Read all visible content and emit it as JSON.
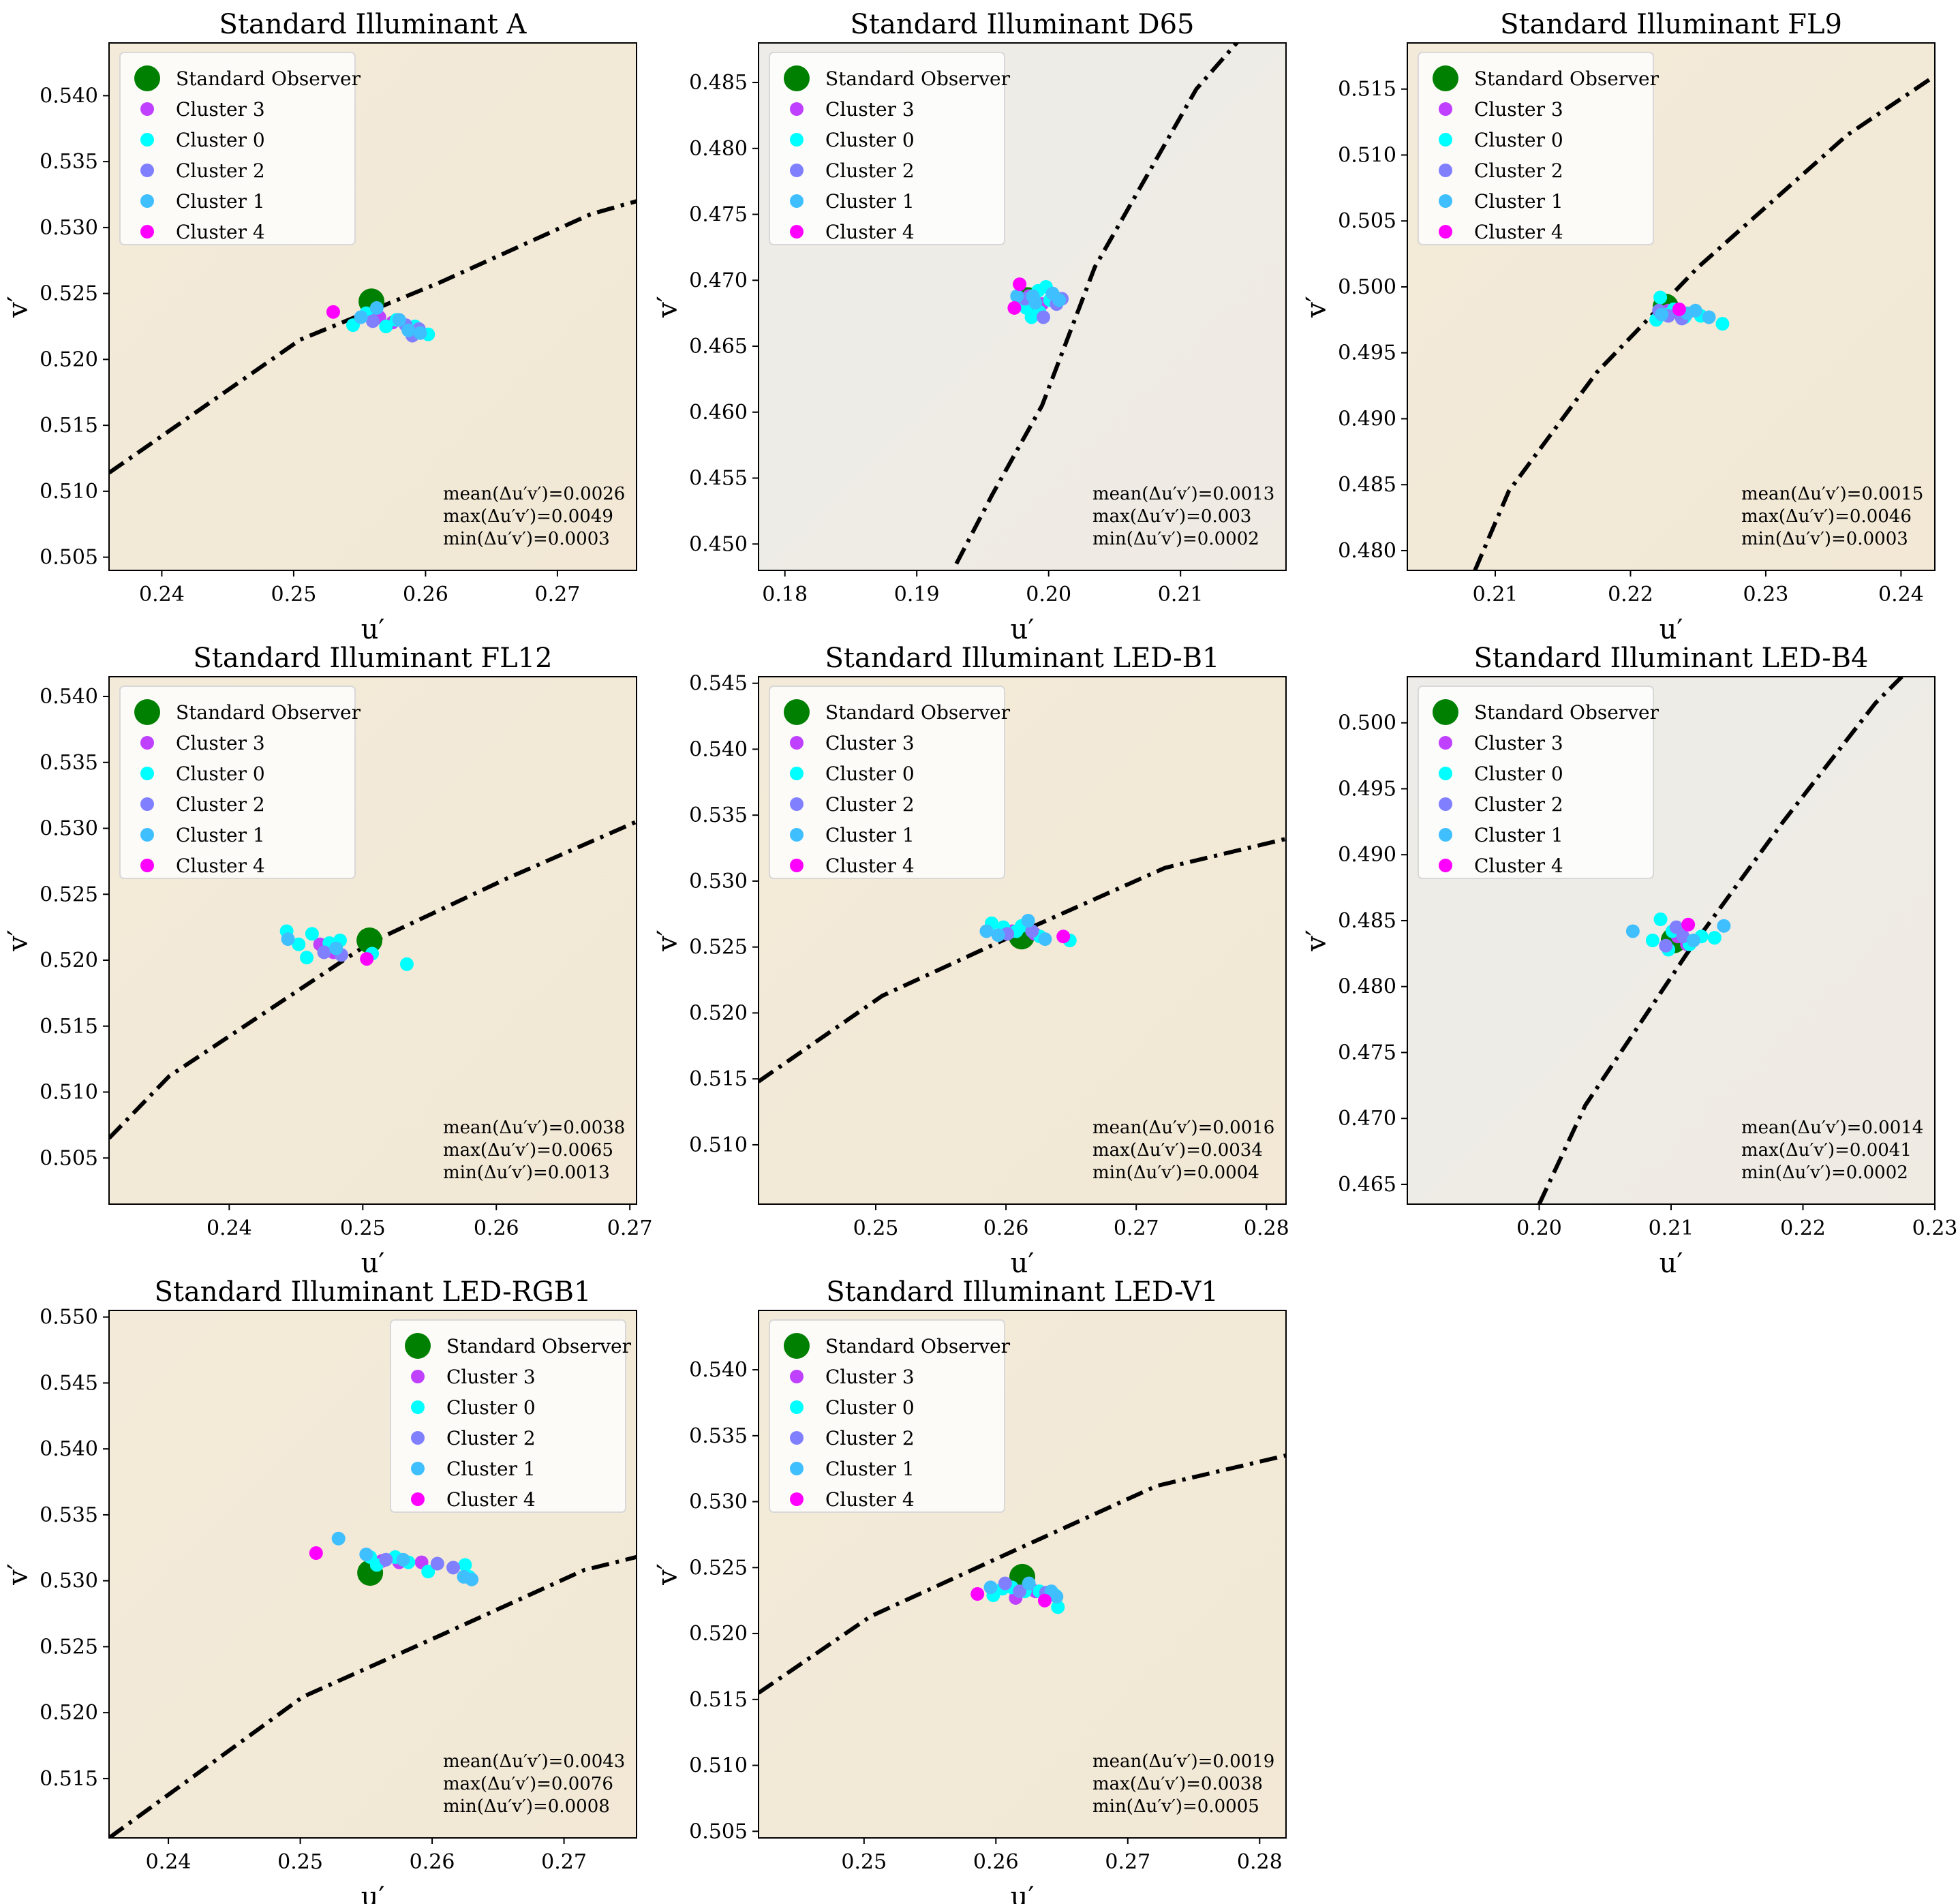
{
  "colors": {
    "standard_observer": "#008000",
    "cluster_3": "#bf40ff",
    "cluster_0": "#00ffff",
    "cluster_2": "#8080ff",
    "cluster_1": "#40bfff",
    "cluster_4": "#ff00ff",
    "locus_line": "#000000",
    "bg_warm": "#f3ead9",
    "bg_cool": "#eeece8"
  },
  "legend_labels": [
    "Standard Observer",
    "Cluster 3",
    "Cluster 0",
    "Cluster 2",
    "Cluster 1",
    "Cluster 4"
  ],
  "chart_data": [
    {
      "type": "scatter",
      "title": "Standard Illuminant A",
      "xlabel": "u′",
      "ylabel": "v′",
      "xlim": [
        0.236,
        0.276
      ],
      "ylim": [
        0.504,
        0.544
      ],
      "xticks": [
        0.24,
        0.25,
        0.26,
        0.27
      ],
      "yticks": [
        0.505,
        0.51,
        0.515,
        0.52,
        0.525,
        0.53,
        0.535,
        0.54
      ],
      "decimals": 3,
      "legend": "top-left",
      "background": "warm",
      "observer": [
        0.2559,
        0.5244
      ],
      "locus": [
        [
          0.236,
          0.5114
        ],
        [
          0.2505,
          0.5215
        ],
        [
          0.261,
          0.5258
        ],
        [
          0.2725,
          0.531
        ],
        [
          0.276,
          0.532
        ]
      ],
      "clusters": {
        "c3": [
          [
            0.2565,
            0.5232
          ],
          [
            0.2575,
            0.5228
          ],
          [
            0.259,
            0.5222
          ]
        ],
        "c0": [
          [
            0.2545,
            0.5226
          ],
          [
            0.2555,
            0.5235
          ],
          [
            0.257,
            0.5225
          ],
          [
            0.2578,
            0.523
          ],
          [
            0.2592,
            0.5225
          ],
          [
            0.2602,
            0.5219
          ]
        ],
        "c2": [
          [
            0.256,
            0.5229
          ],
          [
            0.2585,
            0.5226
          ],
          [
            0.2595,
            0.5223
          ],
          [
            0.259,
            0.5218
          ]
        ],
        "c1": [
          [
            0.2551,
            0.5232
          ],
          [
            0.2563,
            0.5239
          ],
          [
            0.258,
            0.523
          ],
          [
            0.2587,
            0.5222
          ],
          [
            0.2596,
            0.522
          ]
        ],
        "c4": [
          [
            0.253,
            0.5236
          ]
        ]
      },
      "stats": {
        "mean": "mean(Δu′v′)=0.0026",
        "max": "max(Δu′v′)=0.0049",
        "min": "min(Δu′v′)=0.0003"
      }
    },
    {
      "type": "scatter",
      "title": "Standard Illuminant D65",
      "xlabel": "u′",
      "ylabel": "v′",
      "xlim": [
        0.178,
        0.218
      ],
      "ylim": [
        0.448,
        0.488
      ],
      "xticks": [
        0.18,
        0.19,
        0.2,
        0.21
      ],
      "yticks": [
        0.45,
        0.455,
        0.46,
        0.465,
        0.47,
        0.475,
        0.48,
        0.485
      ],
      "decimals": 3,
      "legend": "top-left",
      "background": "cool",
      "observer": [
        0.1984,
        0.4685
      ],
      "locus": [
        [
          0.193,
          0.4485
        ],
        [
          0.1957,
          0.4537
        ],
        [
          0.1995,
          0.4605
        ],
        [
          0.2035,
          0.471
        ],
        [
          0.2112,
          0.4845
        ],
        [
          0.2147,
          0.4885
        ]
      ],
      "clusters": {
        "c3": [
          [
            0.1985,
            0.4688
          ],
          [
            0.1995,
            0.4682
          ]
        ],
        "c0": [
          [
            0.1978,
            0.4685
          ],
          [
            0.1983,
            0.4679
          ],
          [
            0.1987,
            0.4672
          ],
          [
            0.1992,
            0.4692
          ],
          [
            0.1998,
            0.4695
          ],
          [
            0.2001,
            0.4685
          ],
          [
            0.2004,
            0.4688
          ],
          [
            0.1993,
            0.4676
          ]
        ],
        "c2": [
          [
            0.1982,
            0.4686
          ],
          [
            0.1996,
            0.4672
          ],
          [
            0.2006,
            0.4682
          ],
          [
            0.201,
            0.4686
          ]
        ],
        "c1": [
          [
            0.1976,
            0.4688
          ],
          [
            0.1988,
            0.4688
          ],
          [
            0.2003,
            0.469
          ],
          [
            0.2008,
            0.4685
          ],
          [
            0.199,
            0.4683
          ]
        ],
        "c4": [
          [
            0.1978,
            0.4697
          ],
          [
            0.1974,
            0.4679
          ]
        ]
      },
      "stats": {
        "mean": "mean(Δu′v′)=0.0013",
        "max": "max(Δu′v′)=0.003",
        "min": "min(Δu′v′)=0.0002"
      }
    },
    {
      "type": "scatter",
      "title": "Standard Illuminant FL9",
      "xlabel": "u′",
      "ylabel": "v′",
      "xlim": [
        0.2035,
        0.2425
      ],
      "ylim": [
        0.4785,
        0.5185
      ],
      "xticks": [
        0.21,
        0.22,
        0.23,
        0.24
      ],
      "yticks": [
        0.48,
        0.485,
        0.49,
        0.495,
        0.5,
        0.505,
        0.51,
        0.515
      ],
      "decimals": 3,
      "legend": "top-left",
      "background": "warm",
      "observer": [
        0.2226,
        0.4985
      ],
      "locus": [
        [
          0.2085,
          0.4785
        ],
        [
          0.211,
          0.4845
        ],
        [
          0.2175,
          0.4935
        ],
        [
          0.225,
          0.5015
        ],
        [
          0.236,
          0.5115
        ],
        [
          0.2425,
          0.516
        ]
      ],
      "clusters": {
        "c3": [
          [
            0.2228,
            0.4982
          ],
          [
            0.2234,
            0.4981
          ]
        ],
        "c0": [
          [
            0.2219,
            0.4975
          ],
          [
            0.2222,
            0.4992
          ],
          [
            0.2226,
            0.4979
          ],
          [
            0.2232,
            0.4983
          ],
          [
            0.224,
            0.4977
          ],
          [
            0.2268,
            0.4972
          ],
          [
            0.2252,
            0.4978
          ]
        ],
        "c2": [
          [
            0.2221,
            0.4982
          ],
          [
            0.2228,
            0.4978
          ],
          [
            0.2238,
            0.4976
          ]
        ],
        "c1": [
          [
            0.2223,
            0.4979
          ],
          [
            0.2242,
            0.498
          ],
          [
            0.2248,
            0.4982
          ],
          [
            0.2258,
            0.4977
          ]
        ],
        "c4": [
          [
            0.2236,
            0.4983
          ]
        ]
      },
      "stats": {
        "mean": "mean(Δu′v′)=0.0015",
        "max": "max(Δu′v′)=0.0046",
        "min": "min(Δu′v′)=0.0003"
      }
    },
    {
      "type": "scatter",
      "title": "Standard Illuminant FL12",
      "xlabel": "u′",
      "ylabel": "v′",
      "xlim": [
        0.231,
        0.2705
      ],
      "ylim": [
        0.5015,
        0.5415
      ],
      "xticks": [
        0.24,
        0.25,
        0.26,
        0.27
      ],
      "yticks": [
        0.505,
        0.51,
        0.515,
        0.52,
        0.525,
        0.53,
        0.535,
        0.54
      ],
      "decimals": 3,
      "legend": "top-left",
      "background": "warm",
      "observer": [
        0.2505,
        0.5215
      ],
      "locus": [
        [
          0.231,
          0.5065
        ],
        [
          0.2355,
          0.5112
        ],
        [
          0.2505,
          0.5213
        ],
        [
          0.2608,
          0.5262
        ],
        [
          0.2705,
          0.5305
        ]
      ],
      "clusters": {
        "c3": [
          [
            0.2468,
            0.5212
          ],
          [
            0.2478,
            0.5206
          ]
        ],
        "c0": [
          [
            0.2443,
            0.5222
          ],
          [
            0.2452,
            0.5212
          ],
          [
            0.2458,
            0.5202
          ],
          [
            0.2462,
            0.522
          ],
          [
            0.2475,
            0.5213
          ],
          [
            0.2483,
            0.5215
          ],
          [
            0.2507,
            0.5205
          ],
          [
            0.2533,
            0.5197
          ]
        ],
        "c2": [
          [
            0.2471,
            0.5206
          ],
          [
            0.2484,
            0.5204
          ]
        ],
        "c1": [
          [
            0.2444,
            0.5216
          ],
          [
            0.248,
            0.5209
          ]
        ],
        "c4": [
          [
            0.2503,
            0.5201
          ]
        ]
      },
      "stats": {
        "mean": "mean(Δu′v′)=0.0038",
        "max": "max(Δu′v′)=0.0065",
        "min": "min(Δu′v′)=0.0013"
      }
    },
    {
      "type": "scatter",
      "title": "Standard Illuminant LED-B1",
      "xlabel": "u′",
      "ylabel": "v′",
      "xlim": [
        0.241,
        0.2815
      ],
      "ylim": [
        0.5055,
        0.5455
      ],
      "xticks": [
        0.25,
        0.26,
        0.27,
        0.28
      ],
      "yticks": [
        0.51,
        0.515,
        0.52,
        0.525,
        0.53,
        0.535,
        0.54,
        0.545
      ],
      "decimals": 3,
      "legend": "top-left",
      "background": "warm",
      "observer": [
        0.2612,
        0.5258
      ],
      "locus": [
        [
          0.241,
          0.5148
        ],
        [
          0.2505,
          0.5213
        ],
        [
          0.2615,
          0.5263
        ],
        [
          0.2722,
          0.531
        ],
        [
          0.2815,
          0.5332
        ]
      ],
      "clusters": {
        "c3": [
          [
            0.2605,
            0.5262
          ],
          [
            0.2622,
            0.526
          ]
        ],
        "c0": [
          [
            0.2589,
            0.5268
          ],
          [
            0.2598,
            0.5265
          ],
          [
            0.2608,
            0.5262
          ],
          [
            0.2612,
            0.5266
          ],
          [
            0.2626,
            0.5258
          ],
          [
            0.2649,
            0.5255
          ]
        ],
        "c2": [
          [
            0.2601,
            0.526
          ],
          [
            0.262,
            0.5262
          ]
        ],
        "c1": [
          [
            0.2585,
            0.5262
          ],
          [
            0.2594,
            0.5259
          ],
          [
            0.2617,
            0.527
          ],
          [
            0.263,
            0.5256
          ]
        ],
        "c4": [
          [
            0.2644,
            0.5258
          ]
        ]
      },
      "stats": {
        "mean": "mean(Δu′v′)=0.0016",
        "max": "max(Δu′v′)=0.0034",
        "min": "min(Δu′v′)=0.0004"
      }
    },
    {
      "type": "scatter",
      "title": "Standard Illuminant LED-B4",
      "xlabel": "u′",
      "ylabel": "v′",
      "xlim": [
        0.19,
        0.23
      ],
      "ylim": [
        0.4635,
        0.5035
      ],
      "xticks": [
        0.2,
        0.21,
        0.22,
        0.23
      ],
      "yticks": [
        0.465,
        0.47,
        0.475,
        0.48,
        0.485,
        0.49,
        0.495,
        0.5
      ],
      "decimals": 3,
      "legend": "top-left",
      "background": "cool",
      "observer": [
        0.2102,
        0.4835
      ],
      "locus": [
        [
          0.2,
          0.4635
        ],
        [
          0.2035,
          0.471
        ],
        [
          0.2112,
          0.4825
        ],
        [
          0.2185,
          0.4925
        ],
        [
          0.2255,
          0.5015
        ],
        [
          0.2275,
          0.5035
        ]
      ],
      "clusters": {
        "c3": [
          [
            0.2105,
            0.4838
          ],
          [
            0.2112,
            0.4832
          ]
        ],
        "c0": [
          [
            0.2086,
            0.4835
          ],
          [
            0.2092,
            0.4851
          ],
          [
            0.2098,
            0.4828
          ],
          [
            0.2101,
            0.4842
          ],
          [
            0.2114,
            0.4832
          ],
          [
            0.2123,
            0.4838
          ],
          [
            0.2133,
            0.4837
          ]
        ],
        "c2": [
          [
            0.2096,
            0.4831
          ],
          [
            0.2104,
            0.4845
          ],
          [
            0.2109,
            0.4838
          ]
        ],
        "c1": [
          [
            0.2071,
            0.4842
          ],
          [
            0.2117,
            0.4835
          ],
          [
            0.214,
            0.4846
          ]
        ],
        "c4": [
          [
            0.2113,
            0.4847
          ]
        ]
      },
      "stats": {
        "mean": "mean(Δu′v′)=0.0014",
        "max": "max(Δu′v′)=0.0041",
        "min": "min(Δu′v′)=0.0002"
      }
    },
    {
      "type": "scatter",
      "title": "Standard Illuminant LED-RGB1",
      "xlabel": "u′",
      "ylabel": "v′",
      "xlim": [
        0.2355,
        0.2755
      ],
      "ylim": [
        0.5105,
        0.5505
      ],
      "xticks": [
        0.24,
        0.25,
        0.26,
        0.27
      ],
      "yticks": [
        0.515,
        0.52,
        0.525,
        0.53,
        0.535,
        0.54,
        0.545,
        0.55
      ],
      "decimals": 3,
      "legend": "top-right",
      "background": "warm",
      "observer": [
        0.2553,
        0.5306
      ],
      "locus": [
        [
          0.2355,
          0.5105
        ],
        [
          0.2502,
          0.5212
        ],
        [
          0.2605,
          0.5258
        ],
        [
          0.2715,
          0.5308
        ],
        [
          0.2755,
          0.5318
        ]
      ],
      "clusters": {
        "c3": [
          [
            0.2562,
            0.5315
          ],
          [
            0.2575,
            0.5314
          ],
          [
            0.2592,
            0.5314
          ]
        ],
        "c0": [
          [
            0.2553,
            0.5318
          ],
          [
            0.2558,
            0.5312
          ],
          [
            0.2572,
            0.5318
          ],
          [
            0.2582,
            0.5314
          ],
          [
            0.2597,
            0.5307
          ],
          [
            0.2625,
            0.5312
          ],
          [
            0.2628,
            0.5303
          ]
        ],
        "c2": [
          [
            0.2565,
            0.5316
          ],
          [
            0.2604,
            0.5313
          ],
          [
            0.2616,
            0.531
          ]
        ],
        "c1": [
          [
            0.2529,
            0.5332
          ],
          [
            0.255,
            0.532
          ],
          [
            0.2578,
            0.5316
          ],
          [
            0.2624,
            0.5303
          ],
          [
            0.263,
            0.5301
          ]
        ],
        "c4": [
          [
            0.2512,
            0.5321
          ]
        ]
      },
      "stats": {
        "mean": "mean(Δu′v′)=0.0043",
        "max": "max(Δu′v′)=0.0076",
        "min": "min(Δu′v′)=0.0008"
      }
    },
    {
      "type": "scatter",
      "title": "Standard Illuminant LED-V1",
      "xlabel": "u′",
      "ylabel": "v′",
      "xlim": [
        0.242,
        0.282
      ],
      "ylim": [
        0.5045,
        0.5445
      ],
      "xticks": [
        0.25,
        0.26,
        0.27,
        0.28
      ],
      "yticks": [
        0.505,
        0.51,
        0.515,
        0.52,
        0.525,
        0.53,
        0.535,
        0.54
      ],
      "decimals": 3,
      "legend": "top-left",
      "background": "warm",
      "observer": [
        0.262,
        0.5243
      ],
      "locus": [
        [
          0.242,
          0.5155
        ],
        [
          0.2505,
          0.5213
        ],
        [
          0.2612,
          0.5262
        ],
        [
          0.2722,
          0.5312
        ],
        [
          0.282,
          0.5335
        ]
      ],
      "clusters": {
        "c3": [
          [
            0.2615,
            0.5227
          ],
          [
            0.263,
            0.5232
          ]
        ],
        "c0": [
          [
            0.2598,
            0.5229
          ],
          [
            0.2605,
            0.5234
          ],
          [
            0.2612,
            0.5235
          ],
          [
            0.2622,
            0.5232
          ],
          [
            0.2633,
            0.5232
          ],
          [
            0.2647,
            0.522
          ],
          [
            0.2645,
            0.5229
          ]
        ],
        "c2": [
          [
            0.2607,
            0.5238
          ],
          [
            0.2618,
            0.5232
          ],
          [
            0.2638,
            0.5231
          ]
        ],
        "c1": [
          [
            0.2596,
            0.5235
          ],
          [
            0.2625,
            0.5238
          ],
          [
            0.2642,
            0.5232
          ],
          [
            0.2646,
            0.5228
          ]
        ],
        "c4": [
          [
            0.2586,
            0.523
          ],
          [
            0.2637,
            0.5225
          ]
        ]
      },
      "stats": {
        "mean": "mean(Δu′v′)=0.0019",
        "max": "max(Δu′v′)=0.0038",
        "min": "min(Δu′v′)=0.0005"
      }
    }
  ]
}
